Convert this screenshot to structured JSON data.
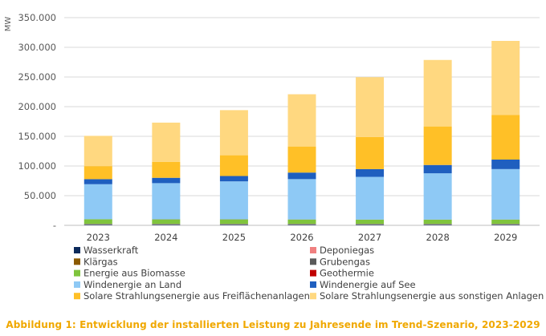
{
  "chart_data": {
    "type": "bar",
    "stacked": true,
    "title": "",
    "xlabel": "",
    "ylabel": "MW",
    "ylim": [
      0,
      350000
    ],
    "yticks": [
      0,
      50000,
      100000,
      150000,
      200000,
      250000,
      300000,
      350000
    ],
    "ytick_labels": [
      "-",
      "50.000",
      "100.000",
      "150.000",
      "200.000",
      "250.000",
      "300.000",
      "350.000"
    ],
    "grid": true,
    "categories": [
      "2023",
      "2024",
      "2025",
      "2026",
      "2027",
      "2028",
      "2029"
    ],
    "series": [
      {
        "name": "Wasserkraft",
        "color": "#0b2a5b",
        "values": [
          1800,
          1800,
          1800,
          1800,
          1800,
          1800,
          1800
        ]
      },
      {
        "name": "Deponiegas",
        "color": "#f08080",
        "values": [
          200,
          200,
          200,
          200,
          200,
          200,
          200
        ]
      },
      {
        "name": "Klärgas",
        "color": "#8b5a00",
        "values": [
          300,
          300,
          300,
          300,
          300,
          300,
          300
        ]
      },
      {
        "name": "Grubengas",
        "color": "#5a5a5a",
        "values": [
          100,
          100,
          100,
          100,
          100,
          100,
          100
        ]
      },
      {
        "name": "Energie aus Biomasse",
        "color": "#7fc43d",
        "values": [
          7800,
          7600,
          7600,
          7400,
          7200,
          7200,
          7300
        ]
      },
      {
        "name": "Geothermie",
        "color": "#c00000",
        "values": [
          100,
          100,
          100,
          100,
          100,
          100,
          100
        ]
      },
      {
        "name": "Windenergie an Land",
        "color": "#8ec9f5",
        "values": [
          59000,
          61000,
          64000,
          68000,
          72000,
          78000,
          85000
        ]
      },
      {
        "name": "Windenergie auf See",
        "color": "#1f5fbf",
        "values": [
          8500,
          9000,
          9000,
          11000,
          13000,
          14000,
          16000
        ]
      },
      {
        "name": "Solare Strahlungsenergie aus Freiflächenanlagen",
        "color": "#ffc027",
        "values": [
          22000,
          27000,
          35000,
          44000,
          54000,
          65000,
          75000
        ]
      },
      {
        "name": "Solare Strahlungsenergie aus sonstigen Anlagen",
        "color": "#ffd880",
        "values": [
          51000,
          66000,
          76000,
          88000,
          101000,
          112000,
          125000
        ]
      }
    ],
    "legend": {
      "position": "bottom",
      "rows": [
        [
          "Wasserkraft",
          "Deponiegas"
        ],
        [
          "Klärgas",
          "Grubengas"
        ],
        [
          "Energie aus Biomasse",
          "Geothermie"
        ],
        [
          "Windenergie an Land",
          "Windenergie auf See"
        ],
        [
          "Solare Strahlungsenergie aus Freiflächenanlagen",
          "Solare Strahlungsenergie aus sonstigen Anlagen"
        ]
      ]
    }
  },
  "caption": "Abbildung 1: Entwicklung der installierten Leistung zu Jahresende im Trend-Szenario, 2023-2029",
  "colors": {
    "grid": "#d9d9d9",
    "axis": "#bfbfbf",
    "caption": "#f0a800"
  }
}
